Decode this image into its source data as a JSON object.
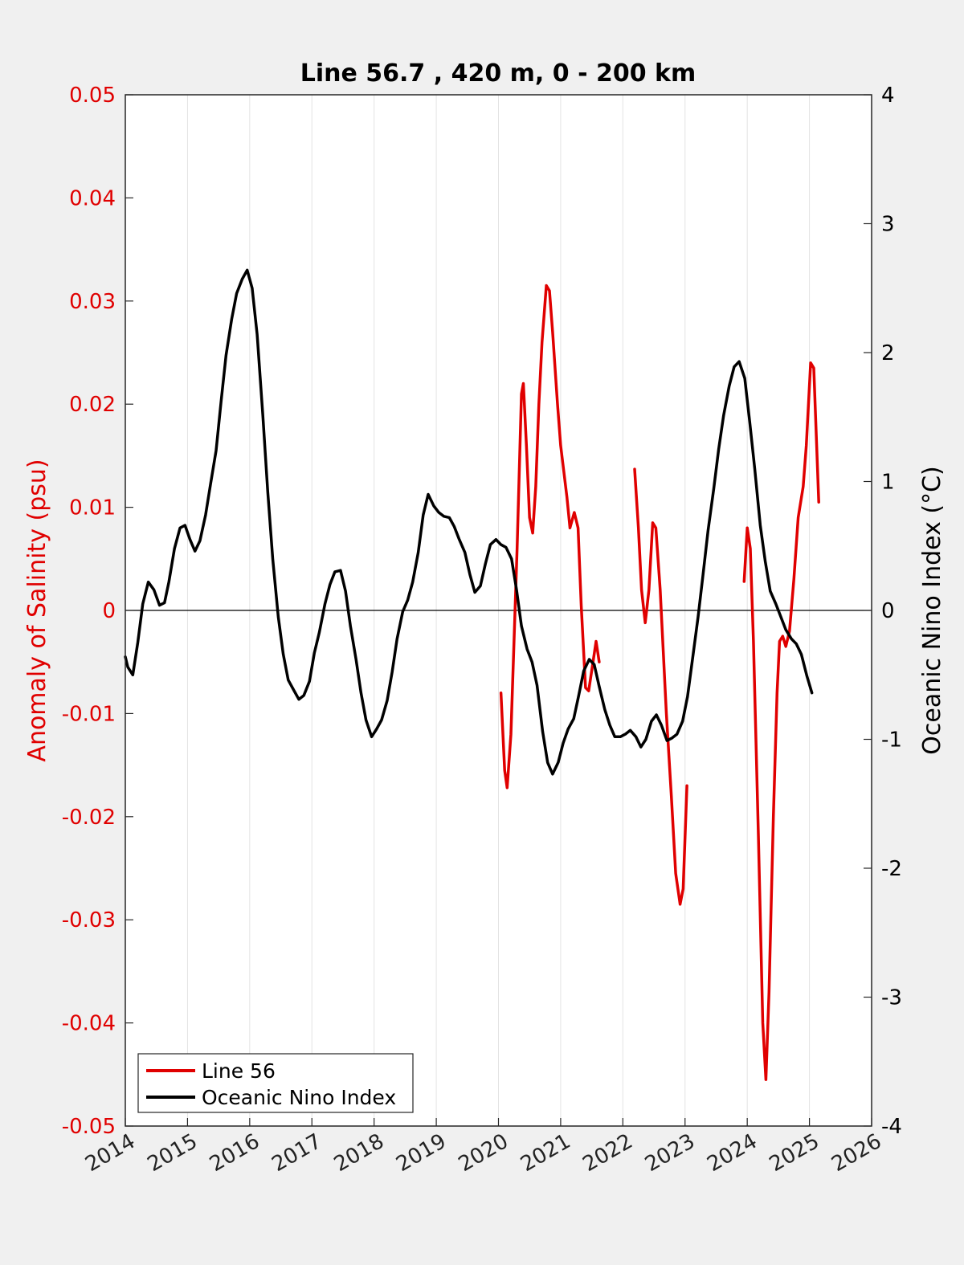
{
  "chart_data": {
    "type": "line",
    "title": "Line 56.7 , 420 m, 0 - 200 km",
    "xlabel": "",
    "ylabel_left": "Anomaly of Salinity (psu)",
    "ylabel_right": "Oceanic Nino Index (°C)",
    "xlim": [
      2014,
      2026
    ],
    "ylim_left": [
      -0.05,
      0.05
    ],
    "ylim_right": [
      -4,
      4
    ],
    "x_ticks": [
      "2014",
      "2015",
      "2016",
      "2017",
      "2018",
      "2019",
      "2020",
      "2021",
      "2022",
      "2023",
      "2024",
      "2025",
      "2026"
    ],
    "y_left_ticks": [
      "-0.05",
      "-0.04",
      "-0.03",
      "-0.02",
      "-0.01",
      "0",
      "0.01",
      "0.02",
      "0.03",
      "0.04",
      "0.05"
    ],
    "y_right_ticks": [
      "-4",
      "-3",
      "-2",
      "-1",
      "0",
      "1",
      "2",
      "3",
      "4"
    ],
    "grid": "vertical",
    "zero_line": true,
    "legend_position": "bottom-left",
    "colors": {
      "line56": "#e00000",
      "oni": "#000000",
      "left_axis": "#e00000",
      "right_axis": "#000000"
    },
    "series": [
      {
        "name": "Line 56",
        "axis": "left",
        "segments": [
          [
            [
              2020.04,
              -0.008
            ],
            [
              2020.1,
              -0.0155
            ],
            [
              2020.14,
              -0.0172
            ],
            [
              2020.2,
              -0.012
            ],
            [
              2020.3,
              0.006
            ],
            [
              2020.37,
              0.021
            ],
            [
              2020.4,
              0.022
            ],
            [
              2020.45,
              0.016
            ],
            [
              2020.5,
              0.009
            ],
            [
              2020.55,
              0.0075
            ],
            [
              2020.6,
              0.012
            ],
            [
              2020.65,
              0.02
            ],
            [
              2020.7,
              0.026
            ],
            [
              2020.77,
              0.0315
            ],
            [
              2020.82,
              0.031
            ],
            [
              2020.87,
              0.027
            ],
            [
              2020.95,
              0.02
            ],
            [
              2021.0,
              0.016
            ],
            [
              2021.05,
              0.0135
            ],
            [
              2021.1,
              0.011
            ],
            [
              2021.15,
              0.008
            ],
            [
              2021.22,
              0.0095
            ],
            [
              2021.28,
              0.008
            ],
            [
              2021.33,
              0.0005
            ],
            [
              2021.4,
              -0.0075
            ],
            [
              2021.45,
              -0.0078
            ],
            [
              2021.52,
              -0.005
            ],
            [
              2021.57,
              -0.003
            ],
            [
              2021.62,
              -0.005
            ]
          ],
          [
            [
              2022.19,
              0.0137
            ],
            [
              2022.25,
              0.008
            ],
            [
              2022.3,
              0.002
            ],
            [
              2022.36,
              -0.0012
            ],
            [
              2022.42,
              0.002
            ],
            [
              2022.48,
              0.0085
            ],
            [
              2022.53,
              0.008
            ],
            [
              2022.6,
              0.002
            ],
            [
              2022.7,
              -0.01
            ],
            [
              2022.78,
              -0.018
            ],
            [
              2022.85,
              -0.0255
            ],
            [
              2022.92,
              -0.0285
            ],
            [
              2022.97,
              -0.027
            ],
            [
              2023.03,
              -0.017
            ]
          ],
          [
            [
              2023.95,
              0.0028
            ],
            [
              2024.0,
              0.008
            ],
            [
              2024.05,
              0.006
            ],
            [
              2024.1,
              -0.003
            ],
            [
              2024.18,
              -0.022
            ],
            [
              2024.25,
              -0.04
            ],
            [
              2024.3,
              -0.0455
            ],
            [
              2024.35,
              -0.037
            ],
            [
              2024.42,
              -0.02
            ],
            [
              2024.48,
              -0.008
            ],
            [
              2024.52,
              -0.003
            ],
            [
              2024.57,
              -0.0025
            ],
            [
              2024.62,
              -0.0035
            ],
            [
              2024.68,
              -0.002
            ],
            [
              2024.75,
              0.003
            ],
            [
              2024.82,
              0.009
            ],
            [
              2024.9,
              0.012
            ],
            [
              2024.95,
              0.016
            ],
            [
              2025.02,
              0.024
            ],
            [
              2025.07,
              0.0235
            ],
            [
              2025.15,
              0.0105
            ]
          ]
        ]
      },
      {
        "name": "Oceanic Nino Index",
        "axis": "right",
        "segments": [
          [
            [
              2014.0,
              -0.36
            ],
            [
              2014.04,
              -0.44
            ],
            [
              2014.12,
              -0.5
            ],
            [
              2014.2,
              -0.25
            ],
            [
              2014.28,
              0.05
            ],
            [
              2014.37,
              0.22
            ],
            [
              2014.46,
              0.16
            ],
            [
              2014.55,
              0.04
            ],
            [
              2014.63,
              0.06
            ],
            [
              2014.7,
              0.22
            ],
            [
              2014.79,
              0.48
            ],
            [
              2014.88,
              0.64
            ],
            [
              2014.96,
              0.66
            ],
            [
              2015.04,
              0.55
            ],
            [
              2015.12,
              0.46
            ],
            [
              2015.2,
              0.54
            ],
            [
              2015.29,
              0.74
            ],
            [
              2015.37,
              0.98
            ],
            [
              2015.46,
              1.24
            ],
            [
              2015.54,
              1.62
            ],
            [
              2015.62,
              1.98
            ],
            [
              2015.71,
              2.26
            ],
            [
              2015.79,
              2.46
            ],
            [
              2015.88,
              2.57
            ],
            [
              2015.96,
              2.64
            ],
            [
              2016.04,
              2.5
            ],
            [
              2016.12,
              2.14
            ],
            [
              2016.21,
              1.52
            ],
            [
              2016.29,
              0.92
            ],
            [
              2016.37,
              0.4
            ],
            [
              2016.46,
              -0.05
            ],
            [
              2016.54,
              -0.34
            ],
            [
              2016.62,
              -0.54
            ],
            [
              2016.71,
              -0.62
            ],
            [
              2016.79,
              -0.69
            ],
            [
              2016.87,
              -0.66
            ],
            [
              2016.96,
              -0.55
            ],
            [
              2017.04,
              -0.33
            ],
            [
              2017.12,
              -0.17
            ],
            [
              2017.21,
              0.05
            ],
            [
              2017.29,
              0.2
            ],
            [
              2017.37,
              0.3
            ],
            [
              2017.46,
              0.31
            ],
            [
              2017.54,
              0.15
            ],
            [
              2017.62,
              -0.12
            ],
            [
              2017.71,
              -0.38
            ],
            [
              2017.79,
              -0.64
            ],
            [
              2017.87,
              -0.85
            ],
            [
              2017.96,
              -0.98
            ],
            [
              2018.04,
              -0.92
            ],
            [
              2018.12,
              -0.85
            ],
            [
              2018.21,
              -0.7
            ],
            [
              2018.29,
              -0.48
            ],
            [
              2018.37,
              -0.22
            ],
            [
              2018.46,
              -0.01
            ],
            [
              2018.54,
              0.08
            ],
            [
              2018.62,
              0.22
            ],
            [
              2018.71,
              0.45
            ],
            [
              2018.79,
              0.74
            ],
            [
              2018.87,
              0.9
            ],
            [
              2018.96,
              0.81
            ],
            [
              2019.04,
              0.76
            ],
            [
              2019.12,
              0.73
            ],
            [
              2019.21,
              0.72
            ],
            [
              2019.29,
              0.65
            ],
            [
              2019.37,
              0.55
            ],
            [
              2019.46,
              0.45
            ],
            [
              2019.54,
              0.28
            ],
            [
              2019.62,
              0.14
            ],
            [
              2019.71,
              0.19
            ],
            [
              2019.79,
              0.36
            ],
            [
              2019.87,
              0.51
            ],
            [
              2019.96,
              0.55
            ],
            [
              2020.04,
              0.51
            ],
            [
              2020.12,
              0.49
            ],
            [
              2020.21,
              0.4
            ],
            [
              2020.29,
              0.16
            ],
            [
              2020.37,
              -0.12
            ],
            [
              2020.46,
              -0.3
            ],
            [
              2020.54,
              -0.4
            ],
            [
              2020.62,
              -0.58
            ],
            [
              2020.71,
              -0.94
            ],
            [
              2020.79,
              -1.18
            ],
            [
              2020.87,
              -1.27
            ],
            [
              2020.96,
              -1.18
            ],
            [
              2021.04,
              -1.03
            ],
            [
              2021.12,
              -0.92
            ],
            [
              2021.21,
              -0.84
            ],
            [
              2021.29,
              -0.66
            ],
            [
              2021.37,
              -0.47
            ],
            [
              2021.46,
              -0.38
            ],
            [
              2021.54,
              -0.42
            ],
            [
              2021.62,
              -0.59
            ],
            [
              2021.71,
              -0.77
            ],
            [
              2021.79,
              -0.89
            ],
            [
              2021.87,
              -0.98
            ],
            [
              2021.96,
              -0.98
            ],
            [
              2022.04,
              -0.96
            ],
            [
              2022.12,
              -0.93
            ],
            [
              2022.21,
              -0.98
            ],
            [
              2022.29,
              -1.06
            ],
            [
              2022.37,
              -1.0
            ],
            [
              2022.46,
              -0.86
            ],
            [
              2022.54,
              -0.81
            ],
            [
              2022.62,
              -0.89
            ],
            [
              2022.71,
              -1.01
            ],
            [
              2022.79,
              -0.99
            ],
            [
              2022.87,
              -0.96
            ],
            [
              2022.96,
              -0.86
            ],
            [
              2023.04,
              -0.67
            ],
            [
              2023.12,
              -0.38
            ],
            [
              2023.21,
              -0.05
            ],
            [
              2023.29,
              0.28
            ],
            [
              2023.37,
              0.62
            ],
            [
              2023.46,
              0.94
            ],
            [
              2023.54,
              1.25
            ],
            [
              2023.62,
              1.51
            ],
            [
              2023.71,
              1.74
            ],
            [
              2023.79,
              1.89
            ],
            [
              2023.87,
              1.93
            ],
            [
              2023.96,
              1.8
            ],
            [
              2024.04,
              1.46
            ],
            [
              2024.12,
              1.1
            ],
            [
              2024.21,
              0.66
            ],
            [
              2024.29,
              0.38
            ],
            [
              2024.37,
              0.15
            ],
            [
              2024.46,
              0.05
            ],
            [
              2024.54,
              -0.05
            ],
            [
              2024.62,
              -0.15
            ],
            [
              2024.71,
              -0.22
            ],
            [
              2024.79,
              -0.26
            ],
            [
              2024.87,
              -0.34
            ],
            [
              2024.96,
              -0.51
            ],
            [
              2025.04,
              -0.64
            ]
          ]
        ]
      }
    ]
  }
}
